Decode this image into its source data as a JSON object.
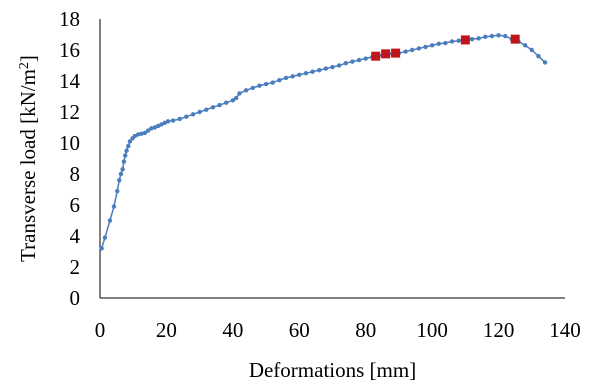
{
  "chart_data": {
    "type": "scatter",
    "xlabel": "Deformations [mm]",
    "ylabel_prefix": "Transverse load [kN/m",
    "ylabel_sup": "2",
    "ylabel_suffix": "]",
    "xlim": [
      0,
      140
    ],
    "ylim": [
      0,
      18
    ],
    "x_ticks": [
      "0",
      "20",
      "40",
      "60",
      "80",
      "100",
      "120",
      "140"
    ],
    "y_ticks": [
      "0",
      "2",
      "4",
      "6",
      "8",
      "10",
      "12",
      "14",
      "16",
      "18"
    ],
    "grid": false,
    "legend": "none",
    "colors": {
      "series": "#4a7dbd",
      "highlight": "#c0161b"
    },
    "series": [
      {
        "values": [
          [
            0.5,
            3.2
          ],
          [
            1.5,
            3.9
          ],
          [
            3.0,
            5.0
          ],
          [
            4.2,
            5.9
          ],
          [
            5.2,
            6.9
          ],
          [
            5.8,
            7.6
          ],
          [
            6.3,
            8.0
          ],
          [
            6.8,
            8.3
          ],
          [
            7.2,
            8.8
          ],
          [
            7.6,
            9.2
          ],
          [
            8.0,
            9.5
          ],
          [
            8.5,
            9.8
          ],
          [
            9.0,
            10.1
          ],
          [
            9.8,
            10.3
          ],
          [
            10.5,
            10.45
          ],
          [
            11.5,
            10.55
          ],
          [
            12.5,
            10.6
          ],
          [
            13.5,
            10.65
          ],
          [
            14.5,
            10.8
          ],
          [
            15.5,
            10.95
          ],
          [
            16.5,
            11.0
          ],
          [
            17.5,
            11.1
          ],
          [
            18.5,
            11.2
          ],
          [
            19.5,
            11.3
          ],
          [
            20.5,
            11.4
          ],
          [
            22.0,
            11.45
          ],
          [
            24.0,
            11.55
          ],
          [
            26.0,
            11.7
          ],
          [
            28.0,
            11.85
          ],
          [
            30.0,
            12.0
          ],
          [
            32.0,
            12.15
          ],
          [
            34.0,
            12.3
          ],
          [
            36.0,
            12.45
          ],
          [
            38.0,
            12.6
          ],
          [
            40.0,
            12.75
          ],
          [
            41.0,
            12.9
          ],
          [
            42.0,
            13.2
          ],
          [
            44.0,
            13.4
          ],
          [
            46.0,
            13.55
          ],
          [
            48.0,
            13.7
          ],
          [
            50.0,
            13.8
          ],
          [
            52.0,
            13.9
          ],
          [
            54.0,
            14.05
          ],
          [
            56.0,
            14.2
          ],
          [
            58.0,
            14.3
          ],
          [
            60.0,
            14.4
          ],
          [
            62.0,
            14.5
          ],
          [
            64.0,
            14.6
          ],
          [
            66.0,
            14.7
          ],
          [
            68.0,
            14.8
          ],
          [
            70.0,
            14.9
          ],
          [
            72.0,
            15.0
          ],
          [
            74.0,
            15.15
          ],
          [
            76.0,
            15.25
          ],
          [
            78.0,
            15.35
          ],
          [
            80.0,
            15.45
          ],
          [
            82.0,
            15.55
          ],
          [
            84.0,
            15.65
          ],
          [
            86.0,
            15.7
          ],
          [
            88.0,
            15.75
          ],
          [
            90.0,
            15.8
          ],
          [
            92.0,
            15.9
          ],
          [
            94.0,
            16.0
          ],
          [
            96.0,
            16.1
          ],
          [
            98.0,
            16.2
          ],
          [
            100.0,
            16.3
          ],
          [
            102.0,
            16.4
          ],
          [
            104.0,
            16.45
          ],
          [
            106.0,
            16.55
          ],
          [
            108.0,
            16.6
          ],
          [
            110.0,
            16.65
          ],
          [
            112.0,
            16.7
          ],
          [
            114.0,
            16.75
          ],
          [
            116.0,
            16.85
          ],
          [
            118.0,
            16.9
          ],
          [
            120.0,
            16.95
          ],
          [
            122.0,
            16.9
          ],
          [
            124.0,
            16.7
          ],
          [
            126.0,
            16.55
          ],
          [
            128.0,
            16.3
          ],
          [
            130.0,
            16.0
          ],
          [
            132.0,
            15.6
          ],
          [
            134.0,
            15.2
          ]
        ]
      },
      {
        "values": [
          [
            83.0,
            15.6
          ],
          [
            86.0,
            15.75
          ],
          [
            89.0,
            15.8
          ],
          [
            110.0,
            16.65
          ],
          [
            125.0,
            16.7
          ]
        ]
      }
    ]
  }
}
